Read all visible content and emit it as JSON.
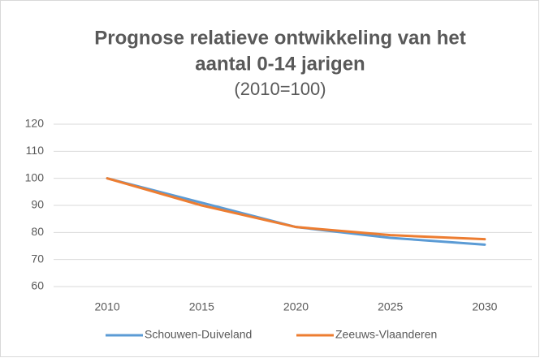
{
  "chart_data": {
    "type": "line",
    "title": [
      "Prognose relatieve ontwikkeling van het",
      "aantal 0-14 jarigen"
    ],
    "subtitle": "(2010=100)",
    "categories": [
      "2010",
      "2015",
      "2020",
      "2025",
      "2030"
    ],
    "series": [
      {
        "name": "Schouwen-Duiveland",
        "color": "#5b9bd5",
        "values": [
          100,
          91,
          82,
          78,
          75.5
        ]
      },
      {
        "name": "Zeeuws-Vlaanderen",
        "color": "#ed7d31",
        "values": [
          100,
          90,
          82,
          79,
          77.5
        ]
      }
    ],
    "ylim": [
      60,
      120
    ],
    "yticks": [
      60,
      70,
      80,
      90,
      100,
      110,
      120
    ],
    "grid": true,
    "legend": "bottom"
  }
}
